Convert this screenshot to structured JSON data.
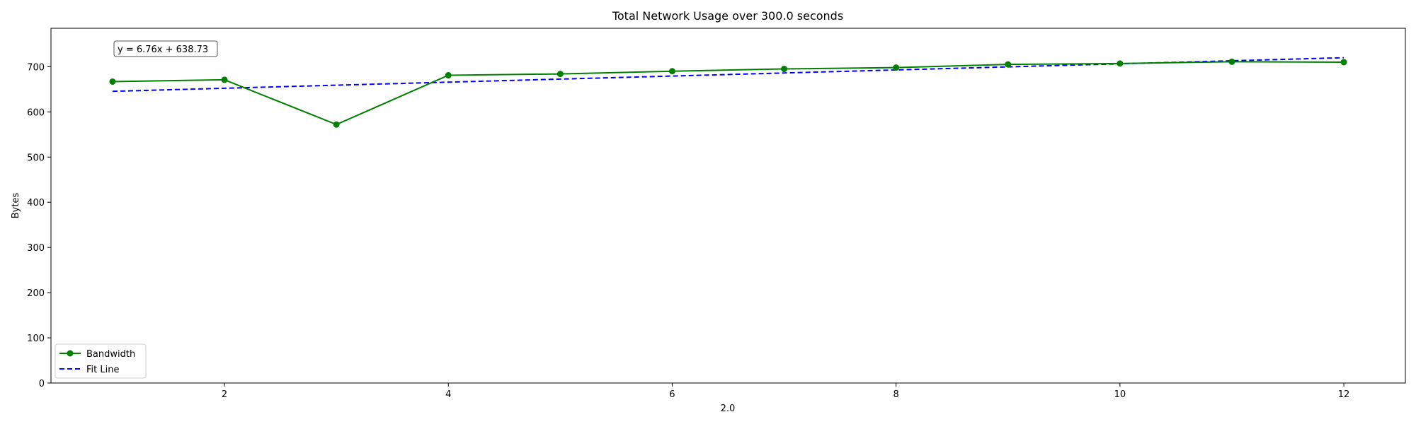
{
  "chart_data": {
    "type": "line",
    "title": "Total Network Usage over 300.0 seconds",
    "xlabel": "2.0",
    "ylabel": "Bytes",
    "xlim": [
      0.45,
      12.55
    ],
    "ylim": [
      0,
      785
    ],
    "x_ticks": [
      2,
      4,
      6,
      8,
      10,
      12
    ],
    "y_ticks": [
      0,
      100,
      200,
      300,
      400,
      500,
      600,
      700
    ],
    "x": [
      1,
      2,
      3,
      4,
      5,
      6,
      7,
      8,
      9,
      10,
      11,
      12
    ],
    "series": [
      {
        "name": "Bandwidth",
        "color": "#008000",
        "style": "solid",
        "marker": "circle",
        "values": [
          667,
          671,
          572,
          681,
          684,
          690,
          695,
          698,
          705,
          707,
          711,
          710
        ]
      },
      {
        "name": "Fit Line",
        "color": "#0000ff",
        "style": "dashed",
        "marker": "none",
        "values": [
          645.49,
          652.25,
          659.01,
          665.77,
          672.53,
          679.29,
          686.05,
          692.81,
          699.57,
          706.33,
          713.09,
          719.85
        ]
      }
    ],
    "annotation": "y = 6.76x + 638.73",
    "legend_position": "lower-left",
    "grid": false
  }
}
